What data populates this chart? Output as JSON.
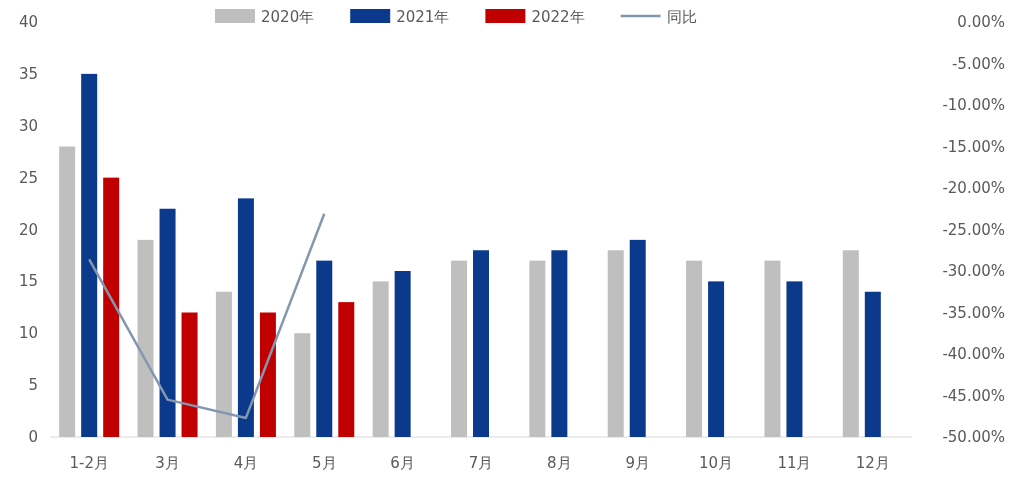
{
  "chart_data": {
    "type": "bar",
    "categories": [
      "1-2月",
      "3月",
      "4月",
      "5月",
      "6月",
      "7月",
      "8月",
      "9月",
      "10月",
      "11月",
      "12月"
    ],
    "series": [
      {
        "name": "2020年",
        "color": "#bfbfbf",
        "values": [
          28,
          19,
          14,
          10,
          15,
          17,
          17,
          18,
          17,
          17,
          18
        ]
      },
      {
        "name": "2021年",
        "color": "#0b3a8c",
        "values": [
          35,
          22,
          23,
          17,
          16,
          18,
          18,
          19,
          15,
          15,
          14
        ]
      },
      {
        "name": "2022年",
        "color": "#c00000",
        "values": [
          25,
          12,
          12,
          13,
          null,
          null,
          null,
          null,
          null,
          null,
          null
        ]
      },
      {
        "name": "同比",
        "type": "line",
        "axis": "y2",
        "color": "#8497b0",
        "values": [
          -28.6,
          -45.5,
          -47.7,
          -23.1,
          null,
          null,
          null,
          null,
          null,
          null,
          null
        ]
      }
    ],
    "ylim": [
      0,
      40
    ],
    "yticks": [
      0,
      5,
      10,
      15,
      20,
      25,
      30,
      35,
      40
    ],
    "y2lim": [
      -50,
      0
    ],
    "y2ticks": [
      {
        "value": 0,
        "label": "0.00%"
      },
      {
        "value": -5,
        "label": "-5.00%"
      },
      {
        "value": -10,
        "label": "-10.00%"
      },
      {
        "value": -15,
        "label": "-15.00%"
      },
      {
        "value": -20,
        "label": "-20.00%"
      },
      {
        "value": -25,
        "label": "-25.00%"
      },
      {
        "value": -30,
        "label": "-30.00%"
      },
      {
        "value": -35,
        "label": "-35.00%"
      },
      {
        "value": -40,
        "label": "-40.00%"
      },
      {
        "value": -45,
        "label": "-45.00%"
      },
      {
        "value": -50,
        "label": "-50.00%"
      }
    ],
    "legend": "top"
  }
}
